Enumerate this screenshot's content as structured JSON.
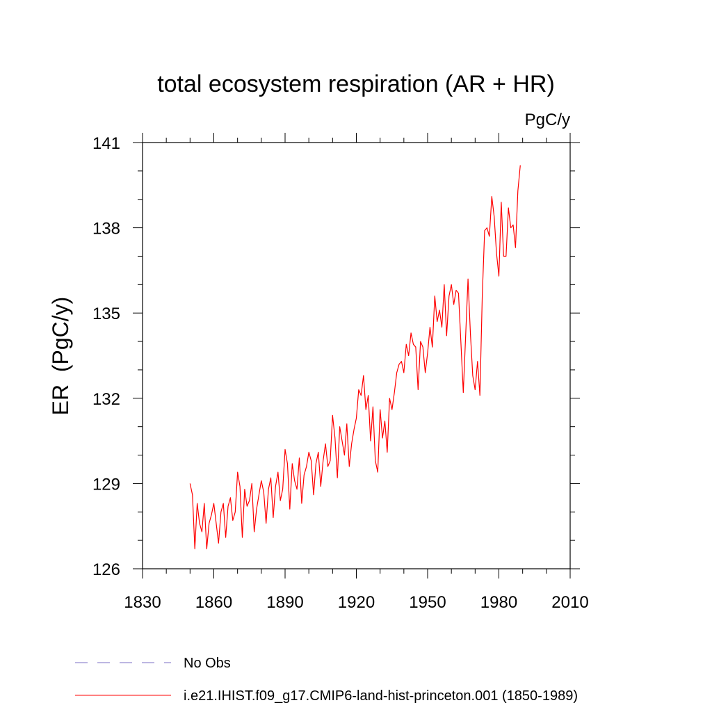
{
  "chart_data": {
    "type": "line",
    "title": "total ecosystem respiration (AR + HR)",
    "units_label": "PgC/y",
    "ylabel": "ER  (PgC/y)",
    "xlabel": "",
    "xlim": [
      1830,
      2010
    ],
    "ylim": [
      126,
      141
    ],
    "xticks": [
      1830,
      1860,
      1890,
      1920,
      1950,
      1980,
      2010
    ],
    "yticks": [
      126,
      129,
      132,
      135,
      138,
      141
    ],
    "legend_position": "bottom-left",
    "series": [
      {
        "name": "No Obs",
        "color": "#7b6fc4",
        "style": "dashed",
        "x": [],
        "y": []
      },
      {
        "name": "i.e21.IHIST.f09_g17.CMIP6-land-hist-princeton.001 (1850-1989)",
        "color": "#ff0000",
        "style": "solid",
        "x": [
          1850,
          1851,
          1852,
          1853,
          1854,
          1855,
          1856,
          1857,
          1858,
          1859,
          1860,
          1861,
          1862,
          1863,
          1864,
          1865,
          1866,
          1867,
          1868,
          1869,
          1870,
          1871,
          1872,
          1873,
          1874,
          1875,
          1876,
          1877,
          1878,
          1879,
          1880,
          1881,
          1882,
          1883,
          1884,
          1885,
          1886,
          1887,
          1888,
          1889,
          1890,
          1891,
          1892,
          1893,
          1894,
          1895,
          1896,
          1897,
          1898,
          1899,
          1900,
          1901,
          1902,
          1903,
          1904,
          1905,
          1906,
          1907,
          1908,
          1909,
          1910,
          1911,
          1912,
          1913,
          1914,
          1915,
          1916,
          1917,
          1918,
          1919,
          1920,
          1921,
          1922,
          1923,
          1924,
          1925,
          1926,
          1927,
          1928,
          1929,
          1930,
          1931,
          1932,
          1933,
          1934,
          1935,
          1936,
          1937,
          1938,
          1939,
          1940,
          1941,
          1942,
          1943,
          1944,
          1945,
          1946,
          1947,
          1948,
          1949,
          1950,
          1951,
          1952,
          1953,
          1954,
          1955,
          1956,
          1957,
          1958,
          1959,
          1960,
          1961,
          1962,
          1963,
          1964,
          1965,
          1966,
          1967,
          1968,
          1969,
          1970,
          1971,
          1972,
          1973,
          1974,
          1975,
          1976,
          1977,
          1978,
          1979,
          1980,
          1981,
          1982,
          1983,
          1984,
          1985,
          1986,
          1987,
          1988,
          1989
        ],
        "y": [
          129.0,
          128.6,
          126.7,
          128.3,
          127.6,
          127.3,
          128.3,
          126.7,
          127.6,
          127.9,
          128.3,
          127.6,
          126.9,
          128.0,
          128.3,
          127.1,
          128.2,
          128.5,
          127.7,
          128.0,
          129.4,
          128.9,
          127.1,
          128.8,
          128.2,
          128.4,
          129.0,
          127.3,
          128.1,
          128.6,
          129.1,
          128.7,
          127.6,
          128.8,
          129.2,
          127.8,
          128.9,
          129.4,
          128.4,
          128.8,
          130.2,
          129.7,
          128.1,
          129.7,
          129.1,
          128.8,
          129.9,
          128.3,
          129.3,
          129.6,
          130.1,
          129.8,
          128.6,
          129.7,
          130.1,
          128.9,
          129.8,
          130.4,
          129.6,
          129.8,
          131.4,
          130.6,
          129.2,
          131.0,
          130.5,
          130.0,
          131.1,
          129.6,
          130.4,
          130.9,
          131.3,
          132.3,
          132.1,
          132.8,
          131.6,
          132.1,
          130.5,
          131.7,
          129.8,
          129.4,
          131.6,
          130.6,
          131.2,
          130.1,
          132.0,
          131.6,
          132.2,
          132.9,
          133.2,
          133.3,
          132.9,
          133.9,
          133.5,
          134.3,
          133.9,
          133.8,
          132.3,
          134.0,
          133.8,
          132.9,
          133.6,
          134.5,
          133.8,
          135.6,
          134.7,
          135.1,
          134.5,
          136.0,
          134.2,
          135.6,
          136.0,
          135.3,
          135.8,
          135.7,
          134.0,
          132.2,
          134.2,
          136.2,
          134.3,
          132.8,
          132.3,
          133.3,
          132.1,
          135.6,
          137.9,
          138.0,
          137.7,
          139.1,
          138.4,
          137.1,
          136.3,
          138.9,
          137.0,
          137.0,
          138.7,
          138.0,
          138.1,
          137.3,
          139.3,
          140.2
        ]
      }
    ]
  }
}
